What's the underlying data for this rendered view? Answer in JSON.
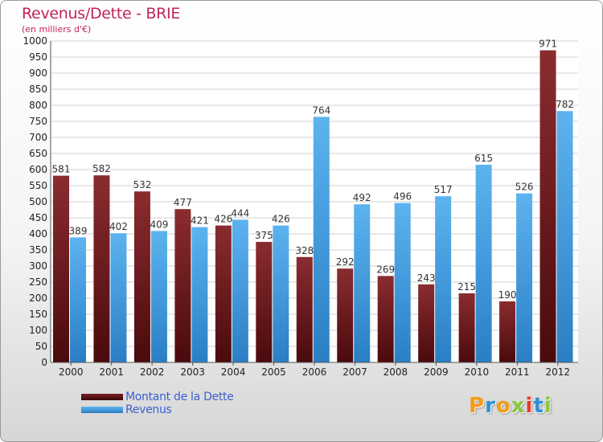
{
  "title": "Revenus/Dette - BRIE",
  "subtitle": "(en milliers d'€)",
  "chart_data": {
    "type": "bar",
    "categories": [
      "2000",
      "2001",
      "2002",
      "2003",
      "2004",
      "2005",
      "2006",
      "2007",
      "2008",
      "2009",
      "2010",
      "2011",
      "2012"
    ],
    "series": [
      {
        "name": "Montant de la Dette",
        "values": [
          581,
          582,
          532,
          477,
          426,
          375,
          328,
          292,
          269,
          243,
          215,
          190,
          971
        ],
        "color": "#7a1e22"
      },
      {
        "name": "Revenus",
        "values": [
          389,
          402,
          409,
          421,
          444,
          426,
          764,
          492,
          496,
          517,
          615,
          526,
          782
        ],
        "color": "#4aa3e6"
      }
    ],
    "ylim": [
      0,
      1000
    ],
    "yticks": [
      0,
      50,
      100,
      150,
      200,
      250,
      300,
      350,
      400,
      450,
      500,
      550,
      600,
      650,
      700,
      750,
      800,
      850,
      900,
      950,
      1000
    ],
    "grid": true,
    "legend_position": "bottom-left"
  },
  "legend": {
    "debt_label": "Montant de la Dette",
    "revenue_label": "Revenus"
  },
  "logo": {
    "letters": [
      "P",
      "r",
      "o",
      "x",
      "i",
      "t",
      "i"
    ],
    "colors": [
      "#f39c1a",
      "#2d8fd5",
      "#f39c1a",
      "#8cc63f",
      "#e23a2c",
      "#2d8fd5",
      "#8cc63f"
    ]
  }
}
